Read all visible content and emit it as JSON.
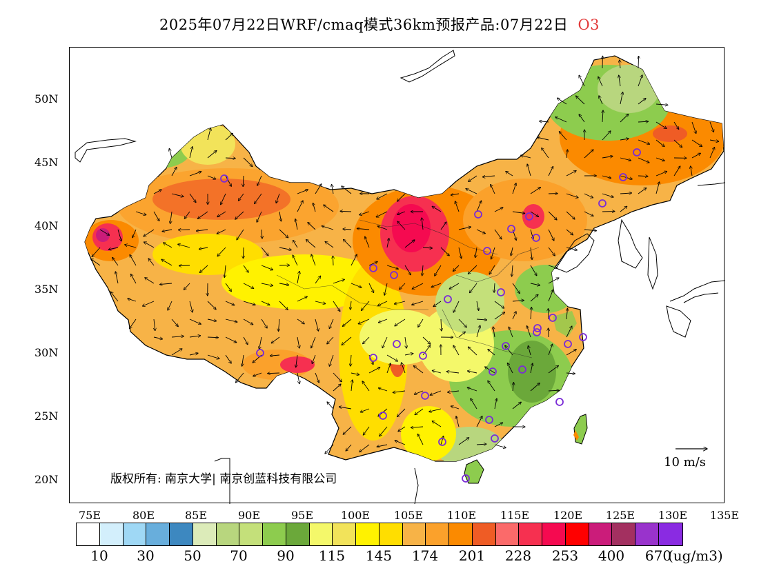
{
  "title": {
    "main": "2025年07月22日WRF/cmaq模式36km预报产品:07月22日",
    "pollutant": "O3"
  },
  "axes": {
    "lat_labels": [
      "50N",
      "45N",
      "40N",
      "35N",
      "30N",
      "25N",
      "20N"
    ],
    "lon_labels": [
      "75E",
      "80E",
      "85E",
      "90E",
      "95E",
      "100E",
      "105E",
      "110E",
      "115E",
      "120E",
      "125E",
      "130E",
      "135E"
    ]
  },
  "copyright": "版权所有: 南京大学| 南京创蓝科技有限公司",
  "vector_reference": "10 m/s",
  "legend": {
    "colors": [
      "#ffffff",
      "#d3effc",
      "#9fd8f5",
      "#68aedc",
      "#3d88c0",
      "#dcebb9",
      "#b8d67e",
      "#c4e07a",
      "#8dcc4e",
      "#6ba83a",
      "#f4f86a",
      "#f2e35a",
      "#fff200",
      "#ffde00",
      "#f7b347",
      "#fba12b",
      "#fb8a00",
      "#ef5c25",
      "#fb6a6a",
      "#f63050",
      "#f50a50",
      "#ff0000",
      "#cb1c7a",
      "#a33060",
      "#9933cc",
      "#8a2be2"
    ],
    "labels": [
      "10",
      "30",
      "50",
      "70",
      "90",
      "115",
      "145",
      "174",
      "201",
      "228",
      "253",
      "400",
      "670"
    ],
    "unit": "(ug/m3)"
  }
}
